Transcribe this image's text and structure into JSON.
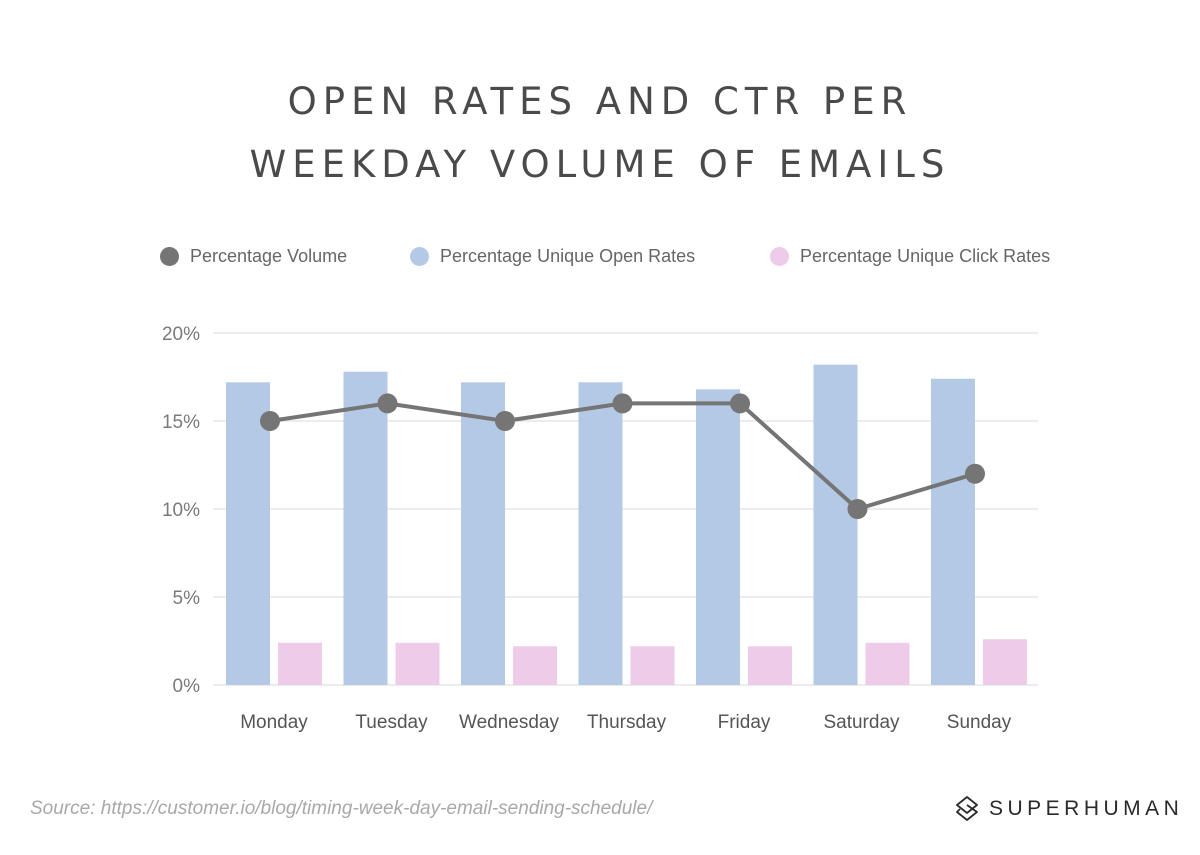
{
  "chart_data": {
    "type": "bar",
    "title": "OPEN RATES AND CTR PER WEEKDAY VOLUME OF EMAILS",
    "title_lines": [
      "OPEN RATES AND CTR PER",
      "WEEKDAY VOLUME OF EMAILS"
    ],
    "xlabel": "",
    "ylabel": "",
    "ylim": [
      0,
      20
    ],
    "yticks": [
      0,
      5,
      10,
      15,
      20
    ],
    "ytick_labels": [
      "0%",
      "5%",
      "10%",
      "15%",
      "20%"
    ],
    "grid": true,
    "legend_placement": "top",
    "categories": [
      "Monday",
      "Tuesday",
      "Wednesday",
      "Thursday",
      "Friday",
      "Saturday",
      "Sunday"
    ],
    "series": [
      {
        "name": "Percentage Volume",
        "type": "line",
        "color": "#757575",
        "values": [
          15,
          16,
          15,
          16,
          16,
          10,
          12
        ]
      },
      {
        "name": "Percentage Unique Open Rates",
        "type": "bar",
        "color": "#b3c9e5",
        "values": [
          17.2,
          17.8,
          17.2,
          17.2,
          16.8,
          18.2,
          17.4
        ]
      },
      {
        "name": "Percentage Unique Click Rates",
        "type": "bar",
        "color": "#eecbe8",
        "values": [
          2.4,
          2.4,
          2.2,
          2.2,
          2.2,
          2.4,
          2.6
        ]
      }
    ]
  },
  "source": "Source: https://customer.io/blog/timing-week-day-email-sending-schedule/",
  "brand": {
    "name": "SUPERHUMAN",
    "icon": "superhuman-logo-icon"
  },
  "colors": {
    "text": "#4a4a4a",
    "axis_text": "#777777",
    "grid": "#e5e5e5"
  }
}
